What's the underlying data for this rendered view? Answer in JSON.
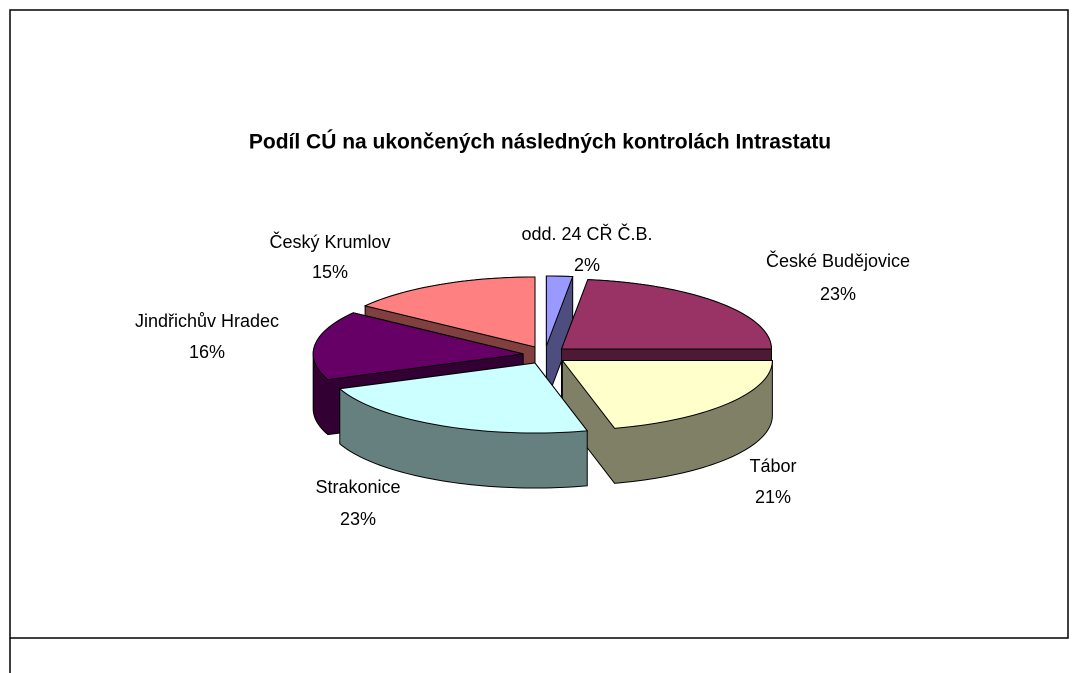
{
  "chart_data": {
    "type": "pie",
    "title": "Podíl CÚ na ukončených následných kontrolách Intrastatu",
    "categories": [
      "odd. 24 CŘ Č.B.",
      "České Budějovice",
      "Tábor",
      "Strakonice",
      "Jindřichův Hradec",
      "Český Krumlov"
    ],
    "values": [
      2,
      23,
      21,
      23,
      16,
      15
    ],
    "value_labels": [
      "2%",
      "23%",
      "21%",
      "23%",
      "16%",
      "15%"
    ],
    "colors": [
      "#9999ff",
      "#993366",
      "#ffffcc",
      "#ccffff",
      "#660066",
      "#ff8080"
    ]
  }
}
